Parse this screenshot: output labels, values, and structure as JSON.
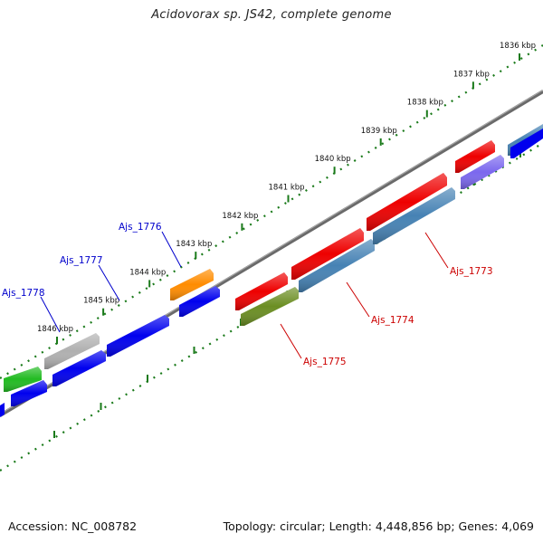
{
  "title": "Acidovorax sp. JS42, complete genome",
  "accession_label": "Accession: NC_008782",
  "summary_label": "Topology: circular; Length: 4,448,856 bp; Genes: 4,069",
  "scale_ticks": [
    {
      "label": "1836 kbp",
      "kbp": 1836
    },
    {
      "label": "1837 kbp",
      "kbp": 1837
    },
    {
      "label": "1838 kbp",
      "kbp": 1838
    },
    {
      "label": "1839 kbp",
      "kbp": 1839
    },
    {
      "label": "1840 kbp",
      "kbp": 1840
    },
    {
      "label": "1841 kbp",
      "kbp": 1841
    },
    {
      "label": "1842 kbp",
      "kbp": 1842
    },
    {
      "label": "1843 kbp",
      "kbp": 1843
    },
    {
      "label": "1844 kbp",
      "kbp": 1844
    },
    {
      "label": "1845 kbp",
      "kbp": 1845
    },
    {
      "label": "1846 kbp",
      "kbp": 1846
    }
  ],
  "gene_labels": [
    {
      "name": "Ajs_1773",
      "color": "#cc0000"
    },
    {
      "name": "Ajs_1774",
      "color": "#cc0000"
    },
    {
      "name": "Ajs_1775",
      "color": "#cc0000"
    },
    {
      "name": "Ajs_1776",
      "color": "#0000cc"
    },
    {
      "name": "Ajs_1777",
      "color": "#0000cc"
    },
    {
      "name": "Ajs_1778",
      "color": "#0000cc"
    }
  ],
  "colors": {
    "backbone": "#777777",
    "ticks": "#1a7a1a",
    "red_feature": "#ee0000",
    "blue_feature": "#0000ee",
    "steelblue_feature": "#4682b4",
    "olive_feature": "#6b8e23",
    "orange_feature": "#ff8c00",
    "green_feature": "#22bb22",
    "gray_feature": "#b0b0b0",
    "purple_feature": "#7b68ee"
  }
}
